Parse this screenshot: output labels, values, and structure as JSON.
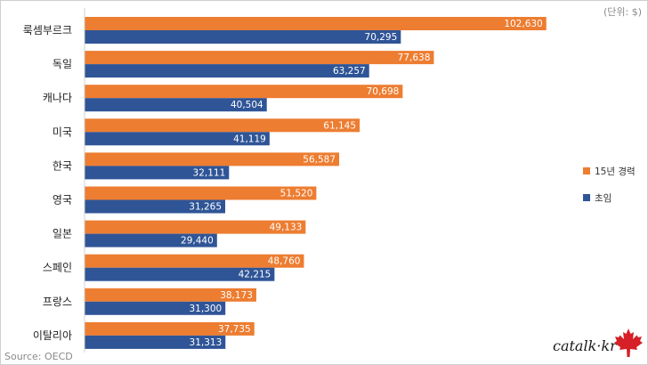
{
  "unit_note": "(단위: $)",
  "source": "Source: OECD",
  "watermark": "catalk·kr",
  "chart_data": {
    "type": "bar",
    "orientation": "horizontal",
    "categories": [
      "룩셈부르크",
      "독일",
      "캐나다",
      "미국",
      "한국",
      "영국",
      "일본",
      "스페인",
      "프랑스",
      "이탈리아"
    ],
    "series": [
      {
        "name": "15년 경력",
        "color": "#ED7D31",
        "values": [
          102630,
          77638,
          70698,
          61145,
          56587,
          51520,
          49133,
          48760,
          38173,
          37735
        ],
        "labels": [
          "102,630",
          "77,638",
          "70,698",
          "61,145",
          "56,587",
          "51,520",
          "49,133",
          "48,760",
          "38,173",
          "37,735"
        ]
      },
      {
        "name": "초임",
        "color": "#2F5597",
        "values": [
          70295,
          63257,
          40504,
          41119,
          32111,
          31265,
          29440,
          42215,
          31300,
          31313
        ],
        "labels": [
          "70,295",
          "63,257",
          "40,504",
          "41,119",
          "32,111",
          "31,265",
          "29,440",
          "42,215",
          "31,300",
          "31,313"
        ]
      }
    ],
    "xlim": [
      0,
      110000
    ],
    "legend_position": "right",
    "grid": false
  }
}
